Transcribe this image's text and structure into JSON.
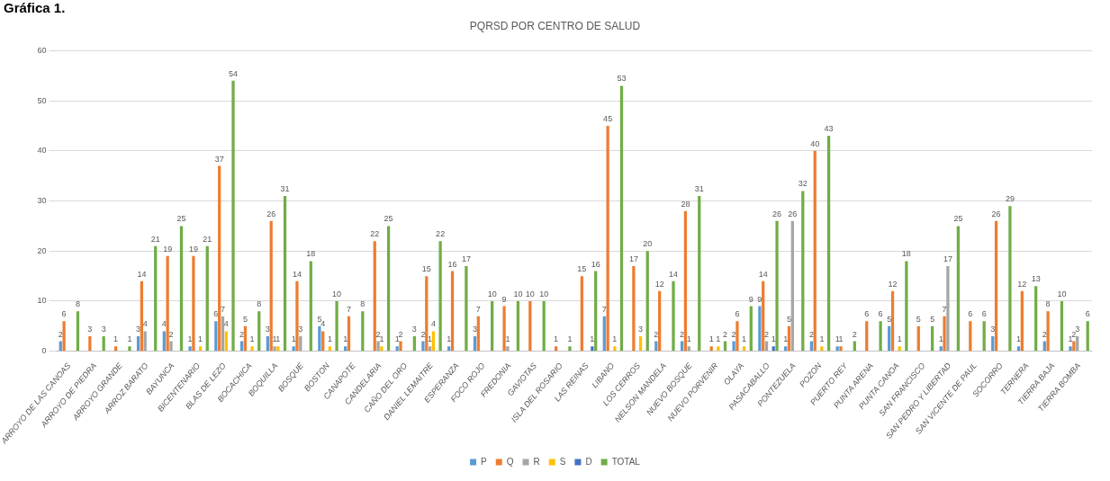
{
  "chart_data": {
    "type": "bar",
    "title": "PQRSD POR CENTRO DE SALUD",
    "annotations": [
      "Gráfica 1."
    ],
    "categories": [
      "ARROYO DE LAS CANOAS",
      "ARROYO DE PIEDRA",
      "ARROYO GRANDE",
      "ARROZ BARATO",
      "BAYUNCA",
      "BICENTENARIO",
      "BLAS DE LEZO",
      "BOCACHICA",
      "BOQUILLA",
      "BOSQUE",
      "BOSTON",
      "CANAPOTE",
      "CANDELARIA",
      "CAÑO DEL ORO",
      "DANIEL LEMAITRE",
      "ESPERANZA",
      "FOCO ROJO",
      "FREDONIA",
      "GAVIOTAS",
      "ISLA DEL ROSARIO",
      "LAS REINAS",
      "LIBANO",
      "LOS CERROS",
      "NELSON MANDELA",
      "NUEVO BOSQUE",
      "NUEVO PORVENIR",
      "OLAYA",
      "PASACABALLO",
      "PONTEZUELA",
      "POZON",
      "PUERTO REY",
      "PUNTA ARENA",
      "PUNTA CANOA",
      "SAN FRANCISCO",
      "SAN PEDRO Y LIBERTAD",
      "SAN VICENTE DE PAUL",
      "SOCORRO",
      "TERNERA",
      "TIERRA BAJA",
      "TIERRA BOMBA"
    ],
    "series": [
      {
        "name": "P",
        "color": "#5b9bd5",
        "values": [
          2,
          null,
          null,
          3,
          4,
          1,
          6,
          2,
          3,
          1,
          5,
          1,
          null,
          1,
          2,
          1,
          3,
          null,
          null,
          null,
          null,
          7,
          null,
          2,
          2,
          null,
          2,
          9,
          1,
          2,
          1,
          null,
          5,
          null,
          1,
          null,
          3,
          1,
          2,
          1
        ]
      },
      {
        "name": "Q",
        "color": "#ed7d31",
        "values": [
          6,
          3,
          1,
          14,
          19,
          19,
          37,
          5,
          26,
          14,
          4,
          7,
          22,
          2,
          15,
          16,
          7,
          9,
          10,
          1,
          15,
          45,
          17,
          12,
          28,
          1,
          6,
          14,
          5,
          40,
          1,
          6,
          12,
          5,
          7,
          6,
          26,
          12,
          8,
          2
        ]
      },
      {
        "name": "R",
        "color": "#a5a5a5",
        "values": [
          null,
          null,
          null,
          4,
          2,
          null,
          7,
          null,
          1,
          3,
          null,
          null,
          2,
          null,
          1,
          null,
          null,
          1,
          null,
          null,
          null,
          null,
          null,
          null,
          1,
          null,
          null,
          2,
          26,
          null,
          null,
          null,
          null,
          null,
          17,
          null,
          null,
          null,
          null,
          3
        ]
      },
      {
        "name": "S",
        "color": "#ffc000",
        "values": [
          null,
          null,
          null,
          null,
          null,
          1,
          4,
          1,
          1,
          null,
          1,
          null,
          1,
          null,
          4,
          null,
          null,
          null,
          null,
          null,
          null,
          1,
          3,
          null,
          null,
          1,
          1,
          null,
          null,
          1,
          null,
          null,
          1,
          null,
          null,
          null,
          null,
          null,
          null,
          null
        ]
      },
      {
        "name": "D",
        "color": "#4472c4",
        "values": [
          null,
          null,
          null,
          null,
          null,
          null,
          null,
          null,
          null,
          null,
          null,
          null,
          null,
          null,
          null,
          null,
          null,
          null,
          null,
          null,
          1,
          null,
          null,
          null,
          null,
          null,
          null,
          1,
          null,
          null,
          null,
          null,
          null,
          null,
          null,
          null,
          null,
          null,
          null,
          null
        ]
      },
      {
        "name": "TOTAL",
        "color": "#70ad47",
        "values": [
          8,
          3,
          1,
          21,
          25,
          21,
          54,
          8,
          31,
          18,
          10,
          8,
          25,
          3,
          22,
          17,
          10,
          10,
          10,
          1,
          16,
          53,
          20,
          14,
          31,
          2,
          9,
          26,
          32,
          43,
          2,
          6,
          18,
          5,
          25,
          6,
          29,
          13,
          10,
          6
        ]
      }
    ],
    "ylim": [
      0,
      60
    ],
    "yticks": [
      0,
      10,
      20,
      30,
      40,
      50,
      60
    ],
    "grid": "y",
    "legend": "bottom",
    "data_labels": true
  }
}
